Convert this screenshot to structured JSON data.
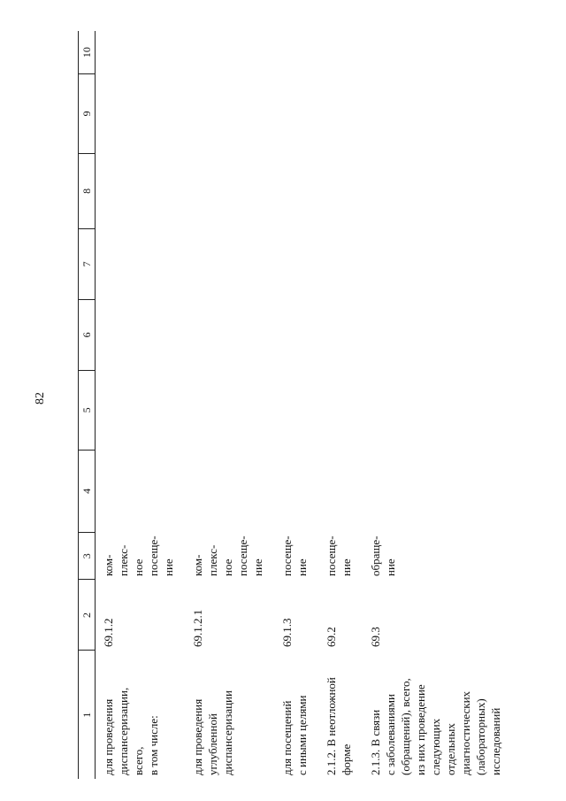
{
  "header": {
    "page_number": "82"
  },
  "table": {
    "columns": [
      "1",
      "2",
      "3",
      "4",
      "5",
      "6",
      "7",
      "8",
      "9",
      "10"
    ],
    "rows": [
      [
        "для проведения\nдиспансеризации,\nвсего,\nв том числе:",
        "69.1.2",
        "ком-\nплекс-\nное\nпосеще-\nние"
      ],
      [
        "для проведения\nуглубленной\nдиспансеризации",
        "69.1.2.1",
        "ком-\nплекс-\nное\nпосеще-\nние"
      ],
      [
        "для посещений\nс иными целями",
        "69.1.3",
        "посеще-\nние"
      ],
      [
        "2.1.2. В неотложной\nформе",
        "69.2",
        "посеще-\nние"
      ],
      [
        "2.1.3. В связи\nс заболеваниями\n(обращений), всего,\nиз них проведение\nследующих\nотдельных\nдиагностических\n(лабораторных)\nисследований",
        "69.3",
        "обраще-\nние"
      ]
    ]
  }
}
